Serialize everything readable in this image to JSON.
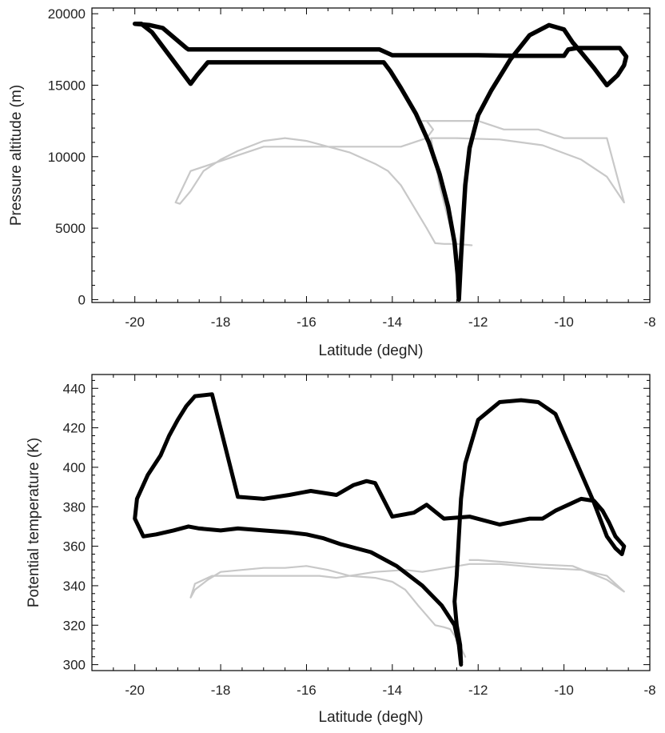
{
  "colors": {
    "dark": "#000000",
    "light": "#c8c8c8",
    "axis": "#000000",
    "background": "#ffffff"
  },
  "chart_data": [
    {
      "type": "line",
      "xlabel": "Latitude (degN)",
      "ylabel": "Pressure altitude (m)",
      "xlim": [
        -21,
        -8
      ],
      "ylim": [
        -200,
        20400
      ],
      "xticks": [
        -20,
        -18,
        -16,
        -14,
        -12,
        -10,
        -8
      ],
      "xtick_labels": [
        "-20",
        "-18",
        "-16",
        "-14",
        "-12",
        "-10",
        "-8"
      ],
      "yticks": [
        0,
        5000,
        10000,
        15000,
        20000
      ],
      "ytick_labels": [
        "0",
        "5000",
        "10000",
        "15000",
        "20000"
      ],
      "grid": false,
      "series": [
        {
          "color": "dark",
          "style": "thick",
          "x": [
            -12.45,
            -12.48,
            -12.55,
            -12.7,
            -12.9,
            -13.15,
            -13.45,
            -13.8,
            -14.05,
            -14.2,
            -14.35,
            -14.4,
            -15.5,
            -16.5,
            -17.5,
            -18.3,
            -18.55,
            -18.7,
            -19.3,
            -19.6,
            -19.85,
            -20.0,
            -19.65,
            -19.35,
            -18.8,
            -18.75,
            -17.5,
            -16.0,
            -14.6,
            -14.3,
            -14.0,
            -13.0,
            -12.0,
            -11.0,
            -10.7,
            -10.0,
            -9.9,
            -9.7,
            -9.4,
            -9.0,
            -8.7,
            -8.55,
            -8.6,
            -8.75,
            -9.0,
            -9.3,
            -9.6,
            -9.8,
            -10.0,
            -10.35,
            -10.8,
            -11.25,
            -11.7,
            -12.0,
            -12.2,
            -12.3,
            -12.35,
            -12.4,
            -12.45
          ],
          "y": [
            0,
            1800,
            4000,
            6500,
            8800,
            11000,
            13000,
            14800,
            16000,
            16600,
            16600,
            16600,
            16600,
            16600,
            16600,
            16600,
            15700,
            15100,
            17500,
            18700,
            19300,
            19300,
            19200,
            19000,
            17600,
            17500,
            17500,
            17500,
            17500,
            17500,
            17100,
            17100,
            17100,
            17050,
            17050,
            17050,
            17500,
            17600,
            17600,
            17600,
            17600,
            17000,
            16400,
            15700,
            15000,
            16200,
            17300,
            18000,
            18900,
            19200,
            18500,
            16800,
            14600,
            12900,
            10600,
            8000,
            5500,
            3000,
            0
          ]
        },
        {
          "color": "light",
          "style": "thin",
          "x": [
            -12.15,
            -12.5,
            -12.8,
            -13.0,
            -13.2,
            -13.5,
            -13.8,
            -14.1,
            -14.4,
            -15.0,
            -16.0,
            -16.5,
            -17.0,
            -17.6,
            -18.0,
            -18.4,
            -18.7,
            -18.95,
            -19.05,
            -18.7,
            -17.0,
            -15.0,
            -14.9,
            -14.5,
            -13.8,
            -13.2,
            -13.05,
            -13.2,
            -13.3,
            -12.0,
            -11.4,
            -10.6,
            -10.0,
            -9.5,
            -9.0,
            -8.6,
            -9.0,
            -9.6,
            -10.5,
            -11.5,
            -12.5,
            -12.9,
            -13.1,
            -12.9,
            -12.6,
            -12.5,
            -12.45
          ],
          "y": [
            3800,
            3900,
            3900,
            3950,
            5000,
            6500,
            8000,
            9000,
            9500,
            10300,
            11100,
            11300,
            11100,
            10400,
            9800,
            9000,
            7600,
            6700,
            6800,
            9000,
            10700,
            10700,
            10700,
            10700,
            10700,
            11300,
            11900,
            12500,
            12500,
            12500,
            11900,
            11900,
            11300,
            11300,
            11300,
            6800,
            8600,
            9800,
            10800,
            11200,
            11300,
            11300,
            11300,
            8000,
            4500,
            1500,
            400
          ]
        }
      ]
    },
    {
      "type": "scatter",
      "xlabel": "Latitude (degN)",
      "ylabel": "Potential temperature (K)",
      "xlim": [
        -21,
        -8
      ],
      "ylim": [
        297,
        447
      ],
      "xticks": [
        -20,
        -18,
        -16,
        -14,
        -12,
        -10,
        -8
      ],
      "xtick_labels": [
        "-20",
        "-18",
        "-16",
        "-14",
        "-12",
        "-10",
        "-8"
      ],
      "yticks": [
        300,
        320,
        340,
        360,
        380,
        400,
        420,
        440
      ],
      "ytick_labels": [
        "300",
        "320",
        "340",
        "360",
        "380",
        "400",
        "420",
        "440"
      ],
      "grid": false,
      "series": [
        {
          "color": "dark",
          "style": "thick",
          "x": [
            -12.4,
            -12.45,
            -12.55,
            -12.85,
            -13.3,
            -13.9,
            -14.5,
            -15.2,
            -15.6,
            -16.0,
            -16.4,
            -17.0,
            -17.6,
            -18.0,
            -18.5,
            -18.75,
            -19.1,
            -19.5,
            -19.8,
            -20.0,
            -19.95,
            -19.7,
            -19.4,
            -19.2,
            -19.0,
            -18.8,
            -18.6,
            -18.2,
            -17.6,
            -17.0,
            -16.4,
            -15.9,
            -15.6,
            -15.3,
            -14.9,
            -14.6,
            -14.4,
            -14.0,
            -13.5,
            -13.2,
            -12.8,
            -12.2,
            -11.5,
            -10.8,
            -10.5,
            -10.2,
            -9.9,
            -9.6,
            -9.3,
            -9.1,
            -8.95,
            -8.8,
            -8.6,
            -8.65,
            -8.8,
            -9.0,
            -9.3,
            -9.6,
            -9.9,
            -10.2,
            -10.6,
            -11.0,
            -11.5,
            -12.0,
            -12.3,
            -12.4,
            -12.45,
            -12.5,
            -12.55,
            -12.5,
            -12.42,
            -12.4
          ],
          "y": [
            300,
            310,
            320,
            330,
            340,
            350,
            357,
            361,
            364,
            366,
            367,
            368,
            369,
            368,
            369,
            370,
            368,
            366,
            365,
            374,
            384,
            396,
            406,
            416,
            424,
            431,
            436,
            437,
            385,
            384,
            386,
            388,
            387,
            386,
            391,
            393,
            392,
            375,
            377,
            381,
            374,
            375,
            371,
            374,
            374,
            378,
            381,
            384,
            383,
            378,
            372,
            365,
            360,
            356,
            359,
            365,
            382,
            397,
            412,
            427,
            433,
            434,
            433,
            424,
            402,
            384,
            365,
            345,
            332,
            320,
            310,
            301
          ]
        },
        {
          "color": "light",
          "style": "thin",
          "x": [
            -12.3,
            -12.5,
            -12.65,
            -12.8,
            -13.0,
            -13.4,
            -13.7,
            -14.0,
            -14.4,
            -15.0,
            -15.5,
            -16.0,
            -16.5,
            -17.0,
            -17.5,
            -18.0,
            -18.3,
            -18.6,
            -18.7,
            -18.6,
            -18.2,
            -17.5,
            -16.5,
            -15.7,
            -15.3,
            -14.4,
            -13.7,
            -13.3,
            -12.2,
            -11.5,
            -10.5,
            -9.6,
            -9.0,
            -8.6,
            -9.0,
            -9.8,
            -10.8,
            -12.0,
            -12.2
          ],
          "y": [
            304,
            313,
            318,
            319,
            320,
            330,
            338,
            342,
            344,
            345,
            348,
            350,
            349,
            349,
            348,
            347,
            343,
            338,
            334,
            341,
            345,
            345,
            345,
            345,
            344,
            347,
            348,
            347,
            351,
            351,
            349,
            348,
            345,
            337,
            343,
            350,
            351,
            353,
            353
          ]
        }
      ]
    }
  ]
}
